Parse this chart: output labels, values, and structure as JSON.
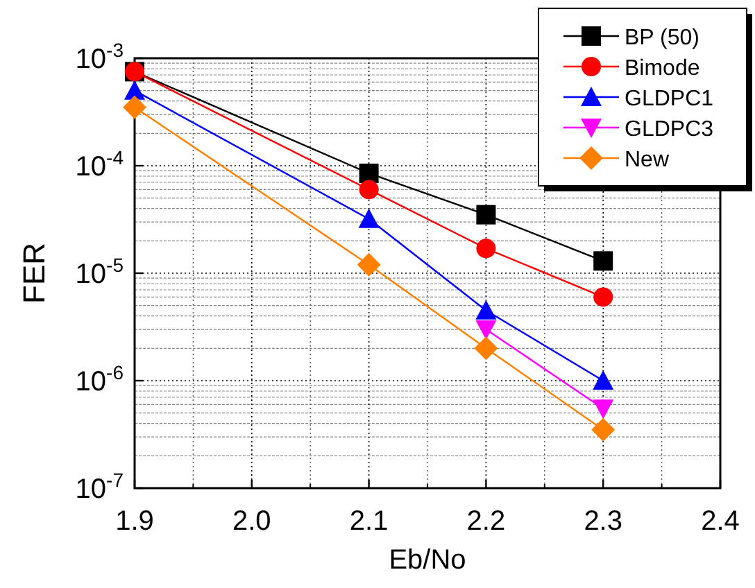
{
  "chart_data": {
    "type": "line",
    "xlabel": "Eb/No",
    "ylabel": "FER",
    "log": "y",
    "grid": true,
    "legend": "top right",
    "xlim": [
      1.9,
      2.4
    ],
    "xticks": [
      {
        "value": 1.9,
        "label": "1.9"
      },
      {
        "value": 2.0,
        "label": "2.0"
      },
      {
        "value": 2.1,
        "label": "2.1"
      },
      {
        "value": 2.2,
        "label": "2.2"
      },
      {
        "value": 2.3,
        "label": "2.3"
      },
      {
        "value": 2.4,
        "label": "2.4"
      }
    ],
    "ylim": [
      1e-07,
      0.001
    ],
    "yticks": [
      {
        "value": 1e-07,
        "label": "10$^{-7}$"
      },
      {
        "value": 1e-06,
        "label": "10$^{-6}$"
      },
      {
        "value": 1e-05,
        "label": "10$^{-5}$"
      },
      {
        "value": 0.0001,
        "label": "10$^{-4}$"
      },
      {
        "value": 0.001,
        "label": "10$^{-3}$"
      }
    ],
    "x": [
      1.9,
      2.1,
      2.2,
      2.3
    ],
    "series": [
      {
        "name": "BP (50)",
        "color": "#000000",
        "marker": "square",
        "values": [
          0.00075,
          8.5e-05,
          3.5e-05,
          1.3e-05
        ]
      },
      {
        "name": "Bimode",
        "color": "#ff0000",
        "marker": "circle",
        "values": [
          0.00075,
          6e-05,
          1.7e-05,
          6e-06
        ]
      },
      {
        "name": "GLDPC1",
        "color": "#0000ff",
        "marker": "triangle",
        "values": [
          0.0005,
          3.2e-05,
          4.5e-06,
          1e-06
        ]
      },
      {
        "name": "GLDPC3",
        "color": "#ff00ff",
        "marker": "triangle-down",
        "x": [
          2.2,
          2.3
        ],
        "values": [
          3e-06,
          5.5e-07
        ]
      },
      {
        "name": "New",
        "color": "#ff8000",
        "marker": "diamond",
        "values": [
          0.00035,
          1.2e-05,
          2e-06,
          3.5e-07
        ]
      }
    ]
  }
}
